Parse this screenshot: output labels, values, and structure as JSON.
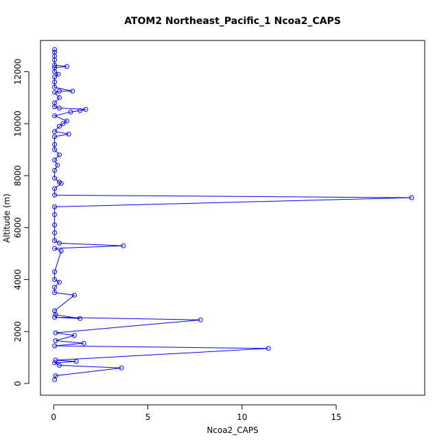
{
  "chart_data": {
    "type": "line",
    "title": "ATOM2 Northeast_Pacific_1 Ncoa2_CAPS",
    "xlabel": "Ncoa2_CAPS",
    "ylabel": "Altitude (m)",
    "xlim": [
      -0.7,
      19.7
    ],
    "ylim": [
      -450,
      13200
    ],
    "xticks": [
      0,
      5,
      10,
      15
    ],
    "yticks": [
      0,
      2000,
      4000,
      6000,
      8000,
      10000,
      12000
    ],
    "grid": false,
    "legend": "none",
    "series_color": "#0000ff",
    "marker": "open-circle",
    "series": [
      {
        "values": [
          [
            0.05,
            150
          ],
          [
            0.1,
            300
          ],
          [
            3.6,
            600
          ],
          [
            0.3,
            700
          ],
          [
            0.05,
            800
          ],
          [
            1.2,
            850
          ],
          [
            0.1,
            900
          ],
          [
            11.4,
            1350
          ],
          [
            0.05,
            1450
          ],
          [
            1.6,
            1550
          ],
          [
            0.1,
            1650
          ],
          [
            1.1,
            1850
          ],
          [
            0.1,
            1950
          ],
          [
            7.8,
            2450
          ],
          [
            0.05,
            2550
          ],
          [
            1.4,
            2500
          ],
          [
            0.1,
            2650
          ],
          [
            0.05,
            2800
          ],
          [
            1.1,
            3400
          ],
          [
            0.05,
            3500
          ],
          [
            0.05,
            3700
          ],
          [
            0.3,
            3900
          ],
          [
            0.05,
            4000
          ],
          [
            0.05,
            4300
          ],
          [
            0.4,
            5100
          ],
          [
            0.05,
            5200
          ],
          [
            3.7,
            5300
          ],
          [
            0.3,
            5400
          ],
          [
            0.05,
            5500
          ],
          [
            0.05,
            5800
          ],
          [
            0.05,
            6100
          ],
          [
            0.05,
            6500
          ],
          [
            0.05,
            6800
          ],
          [
            19.0,
            7150
          ],
          [
            0.05,
            7250
          ],
          [
            0.05,
            7500
          ],
          [
            0.4,
            7700
          ],
          [
            0.3,
            7750
          ],
          [
            0.05,
            7900
          ],
          [
            0.05,
            8200
          ],
          [
            0.2,
            8400
          ],
          [
            0.05,
            8600
          ],
          [
            0.3,
            8800
          ],
          [
            0.05,
            9000
          ],
          [
            0.05,
            9200
          ],
          [
            0.05,
            9500
          ],
          [
            0.8,
            9600
          ],
          [
            0.05,
            9700
          ],
          [
            0.3,
            9900
          ],
          [
            0.5,
            10000
          ],
          [
            0.7,
            10100
          ],
          [
            0.05,
            10300
          ],
          [
            0.9,
            10450
          ],
          [
            1.4,
            10500
          ],
          [
            1.7,
            10550
          ],
          [
            0.3,
            10600
          ],
          [
            0.05,
            10650
          ],
          [
            0.05,
            10800
          ],
          [
            0.3,
            11000
          ],
          [
            0.05,
            11200
          ],
          [
            0.3,
            11250
          ],
          [
            1.0,
            11250
          ],
          [
            0.05,
            11400
          ],
          [
            0.05,
            11600
          ],
          [
            0.05,
            11800
          ],
          [
            0.25,
            11900
          ],
          [
            0.05,
            12000
          ],
          [
            0.05,
            12150
          ],
          [
            0.7,
            12200
          ],
          [
            0.05,
            12250
          ],
          [
            0.05,
            12450
          ],
          [
            0.05,
            12600
          ],
          [
            0.05,
            12750
          ],
          [
            0.05,
            12850
          ]
        ]
      }
    ]
  }
}
